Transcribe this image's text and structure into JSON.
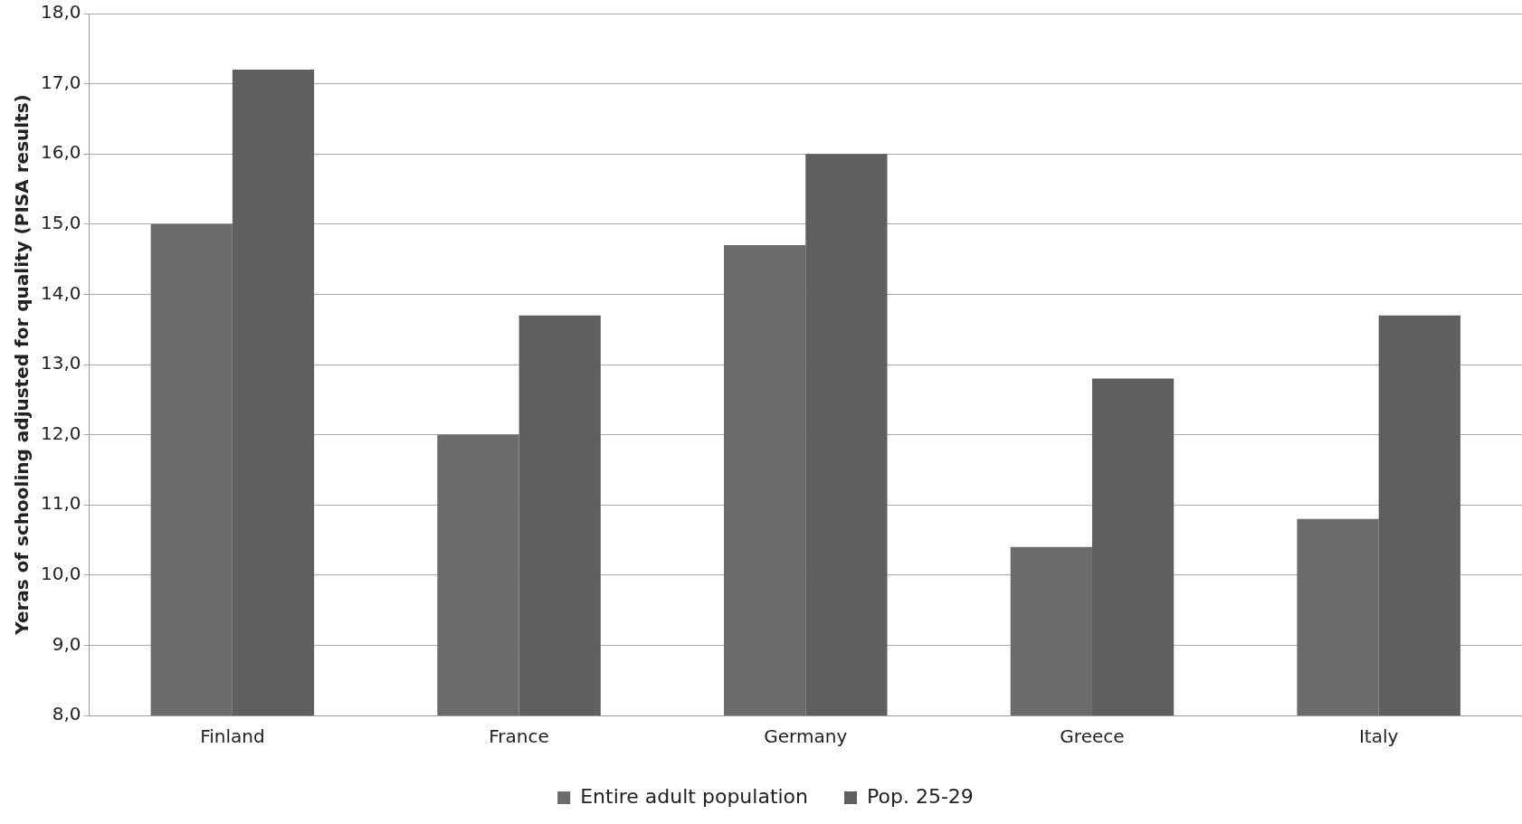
{
  "chart_data": {
    "type": "bar",
    "ylabel": "Yeras of schooling adjusted for quality (PISA results)",
    "categories": [
      "Finland",
      "France",
      "Germany",
      "Greece",
      "Italy"
    ],
    "series": [
      {
        "name": "Entire adult population",
        "color": "#6b6b6b",
        "values": [
          15.0,
          12.0,
          14.7,
          10.4,
          10.8
        ]
      },
      {
        "name": "Pop. 25-29",
        "color": "#5f5f5f",
        "values": [
          17.2,
          13.7,
          16.0,
          12.8,
          13.7
        ]
      }
    ],
    "ylim": [
      8,
      18
    ],
    "yticks": [
      {
        "value": 8,
        "label": "8,0"
      },
      {
        "value": 9,
        "label": "9,0"
      },
      {
        "value": 10,
        "label": "10,0"
      },
      {
        "value": 11,
        "label": "11,0"
      },
      {
        "value": 12,
        "label": "12,0"
      },
      {
        "value": 13,
        "label": "13,0"
      },
      {
        "value": 14,
        "label": "14,0"
      },
      {
        "value": 15,
        "label": "15,0"
      },
      {
        "value": 16,
        "label": "16,0"
      },
      {
        "value": 17,
        "label": "17,0"
      },
      {
        "value": 18,
        "label": "18,0"
      }
    ],
    "grid": "y",
    "legend": "bottom"
  }
}
